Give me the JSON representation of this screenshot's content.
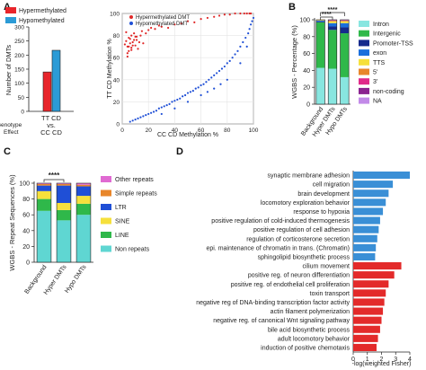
{
  "panels": {
    "a": "A",
    "b": "B",
    "c": "C",
    "d": "D"
  },
  "chart_data": [
    {
      "id": "A",
      "type": "bar",
      "ylabel": "Number of DMTs",
      "ylim": [
        0,
        300
      ],
      "yticks": [
        0,
        50,
        100,
        150,
        200,
        250,
        300
      ],
      "xlabel_lines": [
        "TT CD",
        "vs.",
        "CC CD"
      ],
      "side_label": "Genotype",
      "side_label_2": "Effect",
      "legend_position": "top-left",
      "legend": [
        "Hypermethylated",
        "Hypomethylated"
      ],
      "series": [
        {
          "name": "Hypermethylated",
          "values": [
            140
          ],
          "color": "#e8252b"
        },
        {
          "name": "Hypomethylated",
          "values": [
            217
          ],
          "color": "#2b9bd6"
        }
      ]
    },
    {
      "id": "scatter",
      "type": "scatter",
      "xlabel": "CC CD Methylation %",
      "ylabel": "TT CD Methylation %",
      "xlim": [
        0,
        100
      ],
      "ylim": [
        0,
        100
      ],
      "xticks": [
        0,
        20,
        40,
        60,
        80,
        100
      ],
      "yticks": [
        0,
        20,
        40,
        60,
        80,
        100
      ],
      "grid": true,
      "legend_position": "top-left",
      "series": [
        {
          "name": "Hypermethylated DMT",
          "color": "#e02828",
          "x": [
            2,
            3,
            4,
            5,
            5,
            6,
            7,
            7,
            8,
            9,
            10,
            11,
            12,
            13,
            3,
            4,
            6,
            8,
            9,
            11,
            14,
            16,
            20,
            25,
            30,
            35,
            40,
            45,
            50,
            55,
            60,
            65,
            70,
            74,
            78,
            82,
            86,
            90,
            93,
            95,
            97,
            98,
            4,
            5,
            7,
            10,
            15,
            18,
            22,
            28
          ],
          "y": [
            72,
            75,
            70,
            78,
            66,
            73,
            80,
            69,
            74,
            76,
            71,
            79,
            68,
            74,
            83,
            64,
            77,
            71,
            82,
            76,
            80,
            73,
            85,
            86,
            88,
            87,
            90,
            91,
            93,
            92,
            95,
            96,
            97,
            98,
            99,
            99,
            100,
            100,
            100,
            100,
            100,
            100,
            61,
            70,
            67,
            79,
            84,
            82,
            87,
            89
          ]
        },
        {
          "name": "Hypomethylated DMT",
          "color": "#1f4fd6",
          "x": [
            6,
            8,
            10,
            12,
            14,
            16,
            18,
            20,
            22,
            24,
            26,
            28,
            30,
            32,
            34,
            36,
            38,
            40,
            42,
            44,
            46,
            48,
            50,
            52,
            54,
            56,
            58,
            60,
            62,
            64,
            66,
            68,
            70,
            72,
            74,
            76,
            78,
            80,
            82,
            84,
            86,
            88,
            90,
            92,
            94,
            96,
            97,
            98,
            99,
            100,
            30,
            40,
            50,
            60,
            70,
            80,
            90,
            95,
            65,
            75
          ],
          "y": [
            2,
            3,
            4,
            5,
            6,
            7,
            8,
            9,
            10,
            11,
            12,
            14,
            15,
            16,
            17,
            18,
            20,
            21,
            22,
            23,
            25,
            26,
            28,
            29,
            30,
            32,
            33,
            35,
            36,
            38,
            40,
            42,
            44,
            46,
            48,
            50,
            52,
            55,
            57,
            60,
            63,
            66,
            70,
            74,
            78,
            82,
            86,
            90,
            93,
            96,
            9,
            14,
            20,
            26,
            32,
            40,
            55,
            70,
            29,
            36
          ]
        }
      ]
    },
    {
      "id": "B",
      "type": "bar",
      "stacked": true,
      "ylabel": "WGBS - Percentage (%)",
      "ylim": [
        0,
        100
      ],
      "yticks": [
        0,
        20,
        40,
        60,
        80,
        100
      ],
      "categories": [
        "Background",
        "Hyper DMTs",
        "Hypo DMTs"
      ],
      "significance": "****",
      "legend_position": "right",
      "series": [
        {
          "name": "Intron",
          "color": "#88e6e0",
          "values": [
            43,
            42,
            32
          ]
        },
        {
          "name": "Intergenic",
          "color": "#2fb84a",
          "values": [
            54,
            46,
            52
          ]
        },
        {
          "name": "Promoter-TSS",
          "color": "#162a8c",
          "values": [
            1,
            4,
            7
          ]
        },
        {
          "name": "exon",
          "color": "#1b6fdc",
          "values": [
            1,
            4,
            5
          ]
        },
        {
          "name": "TTS",
          "color": "#f6e03c",
          "values": [
            0.5,
            2,
            2
          ]
        },
        {
          "name": "5'",
          "color": "#e8862b",
          "values": [
            0.2,
            0.8,
            0.8
          ]
        },
        {
          "name": "3'",
          "color": "#e02a8a",
          "values": [
            0.1,
            0.5,
            0.5
          ]
        },
        {
          "name": "non-coding",
          "color": "#8b2390",
          "values": [
            0.1,
            0.4,
            0.4
          ]
        },
        {
          "name": "NA",
          "color": "#c28ae8",
          "values": [
            0.1,
            0.3,
            0.3
          ]
        }
      ]
    },
    {
      "id": "C",
      "type": "bar",
      "stacked": true,
      "ylabel": "WGBS - Repeat Sequences (%)",
      "ylim": [
        0,
        100
      ],
      "yticks": [
        0,
        20,
        40,
        60,
        80,
        100
      ],
      "categories": [
        "Background",
        "Hyper DMTs",
        "Hypo DMTs"
      ],
      "significance": "****",
      "legend_position": "right",
      "series": [
        {
          "name": "Non repeats",
          "color": "#5fd6d2",
          "values": [
            65,
            53,
            60
          ]
        },
        {
          "name": "LINE",
          "color": "#2fb84a",
          "values": [
            15,
            13,
            14
          ]
        },
        {
          "name": "SINE",
          "color": "#f6e03c",
          "values": [
            10,
            9,
            10
          ]
        },
        {
          "name": "LTR",
          "color": "#1f4fd6",
          "values": [
            7,
            22,
            12
          ]
        },
        {
          "name": "Simple repeats",
          "color": "#e8862b",
          "values": [
            2,
            2,
            2
          ]
        },
        {
          "name": "Other repeats",
          "color": "#e06ad2",
          "values": [
            1,
            1,
            2
          ]
        }
      ]
    },
    {
      "id": "D",
      "type": "bar",
      "orientation": "horizontal",
      "xlabel": "-log(weighted Fisher)",
      "xlim": [
        0,
        4
      ],
      "xticks": [
        0,
        1,
        2,
        3,
        4
      ],
      "categories": [
        "synaptic membrane adhesion",
        "cell migration",
        "brain development",
        "locomotory exploration behavior",
        "response to hypoxia",
        "positive regulation of cold-induced thermogenesis",
        "positive regulation of cell adhesion",
        "regulation of corticosterone secretion",
        "epi. maintenance of chromatin in trans. (Chromatin)",
        "sphingolipid biosynthetic process",
        "cilium movement",
        "positive reg. of neuron differentiation",
        "positive reg. of endothelial cell proliferation",
        "toxin transport",
        "negative reg of DNA-binding transcription factor activity",
        "actin filament polymerization",
        "negative reg. of canonical Wnt signaling pathway",
        "bile acid biosynthetic process",
        "adult locomotory behavior",
        "induction of positive chemotaxis"
      ],
      "values": [
        4.0,
        2.8,
        2.5,
        2.3,
        2.1,
        1.9,
        1.8,
        1.7,
        1.6,
        1.55,
        3.4,
        2.9,
        2.5,
        2.3,
        2.2,
        2.1,
        2.0,
        1.9,
        1.75,
        1.65
      ],
      "colors": [
        "#3a8fd6",
        "#3a8fd6",
        "#3a8fd6",
        "#3a8fd6",
        "#3a8fd6",
        "#3a8fd6",
        "#3a8fd6",
        "#3a8fd6",
        "#3a8fd6",
        "#3a8fd6",
        "#e32a2a",
        "#e32a2a",
        "#e32a2a",
        "#e32a2a",
        "#e32a2a",
        "#e32a2a",
        "#e32a2a",
        "#e32a2a",
        "#e32a2a",
        "#e32a2a"
      ]
    }
  ]
}
